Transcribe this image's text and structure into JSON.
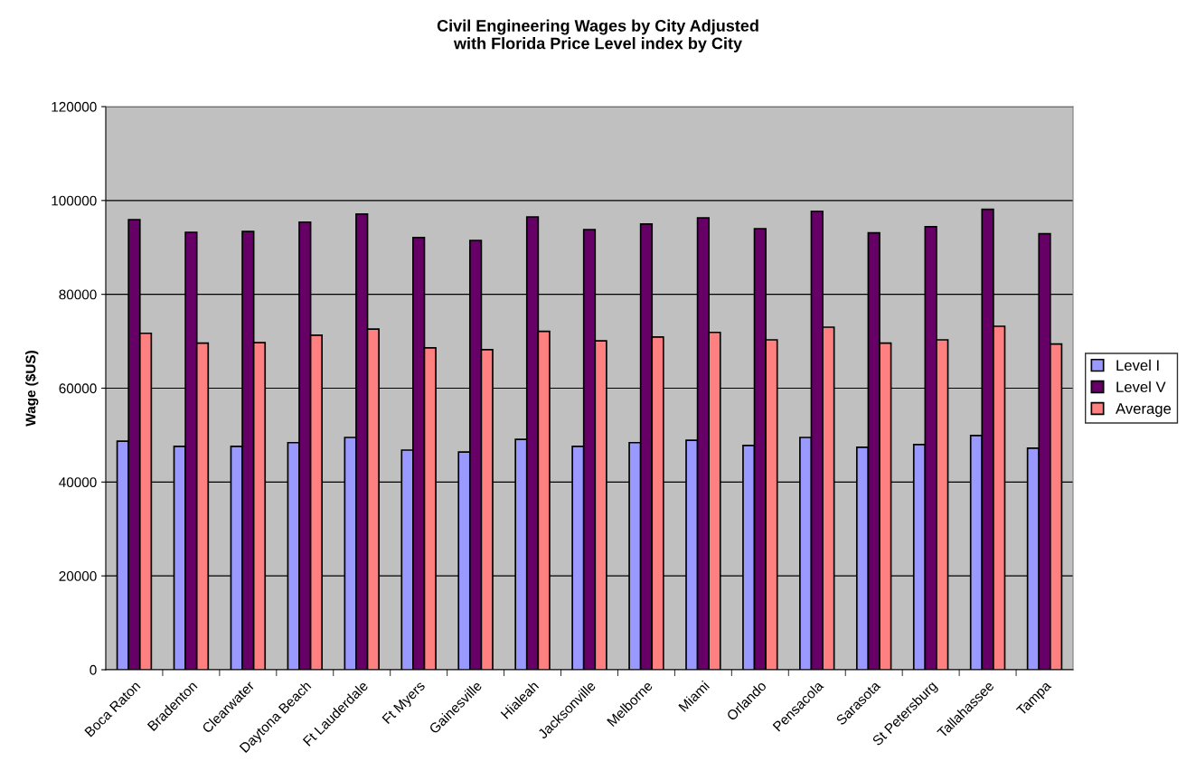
{
  "chart_data": {
    "type": "bar",
    "title": "Civil Engineering Wages by City Adjusted\nwith Florida Price Level index by City",
    "ylabel": "Wage ($US)",
    "categories": [
      "Boca Raton",
      "Bradenton",
      "Clearwater",
      "Daytona Beach",
      "Ft Lauderdale",
      "Ft Myers",
      "Gainesville",
      "Hialeah",
      "Jacksonville",
      "Melborne",
      "Miami",
      "Orlando",
      "Pensacola",
      "Sarasota",
      "St Petersburg",
      "Tallahassee",
      "Tampa"
    ],
    "series": [
      {
        "name": "Level I",
        "color": "#9999ff",
        "values": [
          48700,
          47600,
          47600,
          48400,
          49500,
          46800,
          46400,
          49100,
          47600,
          48400,
          48900,
          47800,
          49500,
          47400,
          48000,
          49900,
          47200
        ]
      },
      {
        "name": "Level V",
        "color": "#660066",
        "values": [
          95900,
          93200,
          93400,
          95400,
          97100,
          92100,
          91500,
          96500,
          93800,
          95000,
          96300,
          94000,
          97700,
          93100,
          94400,
          98100,
          92900
        ]
      },
      {
        "name": "Average",
        "color": "#ff8080",
        "values": [
          71700,
          69600,
          69700,
          71300,
          72600,
          68600,
          68200,
          72100,
          70100,
          70900,
          71900,
          70300,
          73000,
          69600,
          70300,
          73200,
          69400
        ]
      }
    ],
    "ylim": [
      0,
      120000
    ],
    "yticks": [
      0,
      20000,
      40000,
      60000,
      80000,
      100000,
      120000
    ],
    "grid": "y",
    "legend": "right"
  }
}
